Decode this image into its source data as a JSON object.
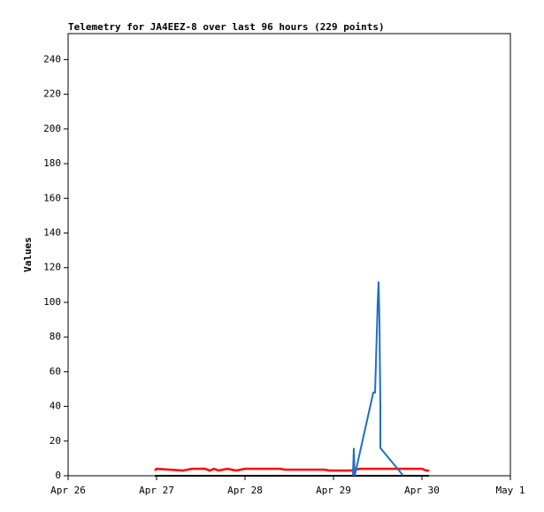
{
  "chart_data": {
    "type": "line",
    "title": "Telemetry for JA4EEZ-8 over last 96 hours (229 points)",
    "y_label": "Values",
    "xlim": [
      0,
      5
    ],
    "ylim": [
      0,
      255
    ],
    "xticks": [
      {
        "value": 0,
        "label": "Apr 26"
      },
      {
        "value": 1,
        "label": "Apr 27"
      },
      {
        "value": 2,
        "label": "Apr 28"
      },
      {
        "value": 3,
        "label": "Apr 29"
      },
      {
        "value": 4,
        "label": "Apr 30"
      },
      {
        "value": 5,
        "label": "May 1"
      }
    ],
    "yticks": [
      0,
      20,
      40,
      60,
      80,
      100,
      120,
      140,
      160,
      180,
      200,
      220,
      240
    ],
    "series": [
      {
        "color": "#000000",
        "x": [
          0.98,
          4.08
        ],
        "values": [
          0,
          0
        ]
      },
      {
        "color": "#ff0000",
        "x": [
          0.98,
          1.0,
          1.3,
          1.4,
          1.55,
          1.6,
          1.65,
          1.7,
          1.8,
          1.9,
          2.0,
          2.1,
          2.4,
          2.45,
          2.9,
          2.95,
          3.2,
          3.3,
          4.0,
          4.05,
          4.08
        ],
        "values": [
          3,
          4,
          3,
          4,
          4,
          3,
          4,
          3,
          4,
          3,
          4,
          4,
          4,
          3.5,
          3.5,
          3,
          3,
          4,
          4,
          3,
          3
        ]
      },
      {
        "color": "#1f6fc5",
        "x": [
          3.22,
          3.23,
          3.24,
          3.45,
          3.47,
          3.5,
          3.51,
          3.52,
          3.53,
          3.53,
          3.79
        ],
        "values": [
          0,
          16,
          0,
          48,
          48,
          100,
          112,
          88,
          40,
          16,
          0
        ]
      }
    ]
  }
}
